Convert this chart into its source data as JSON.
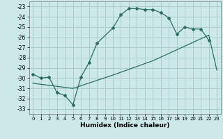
{
  "xlabel": "Humidex (Indice chaleur)",
  "bg_color": "#cce8e8",
  "grid_color": "#aacccc",
  "line_color": "#2a6e62",
  "xlim": [
    -0.5,
    23.5
  ],
  "ylim": [
    -33.5,
    -22.5
  ],
  "xticks": [
    0,
    1,
    2,
    3,
    4,
    5,
    6,
    7,
    8,
    9,
    10,
    11,
    12,
    13,
    14,
    15,
    16,
    17,
    18,
    19,
    20,
    21,
    22,
    23
  ],
  "yticks": [
    -23,
    -24,
    -25,
    -26,
    -27,
    -28,
    -29,
    -30,
    -31,
    -32,
    -33
  ],
  "line1_x": [
    0,
    1,
    2,
    3,
    4,
    5,
    6,
    7,
    8,
    10,
    11,
    12,
    13,
    14,
    15,
    16,
    17,
    18,
    19,
    20,
    21,
    22
  ],
  "line1_y": [
    -29.6,
    -30.0,
    -29.9,
    -31.4,
    -31.7,
    -32.6,
    -29.9,
    -28.5,
    -26.6,
    -25.1,
    -23.8,
    -23.2,
    -23.2,
    -23.3,
    -23.3,
    -23.6,
    -24.1,
    -25.7,
    -25.0,
    -25.2,
    -25.2,
    -26.3
  ],
  "line2_x": [
    0,
    5,
    10,
    15,
    22,
    23
  ],
  "line2_y": [
    -30.5,
    -31.0,
    -29.7,
    -28.3,
    -25.8,
    -29.2
  ]
}
